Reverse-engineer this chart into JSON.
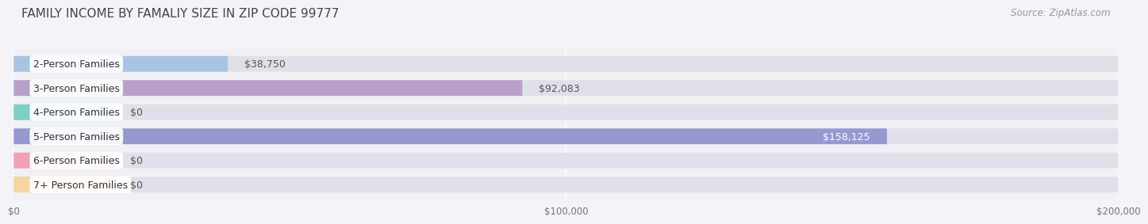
{
  "title": "FAMILY INCOME BY FAMALIY SIZE IN ZIP CODE 99777",
  "source": "Source: ZipAtlas.com",
  "categories": [
    "2-Person Families",
    "3-Person Families",
    "4-Person Families",
    "5-Person Families",
    "6-Person Families",
    "7+ Person Families"
  ],
  "values": [
    38750,
    92083,
    0,
    158125,
    0,
    0
  ],
  "bar_colors": [
    "#a8c4e2",
    "#b8a0c8",
    "#7dcfc8",
    "#9898d0",
    "#f4a0b4",
    "#f5d5a0"
  ],
  "bg_color": "#f0f0f5",
  "bar_bg_color": "#e0e0ea",
  "xlim": [
    0,
    200000
  ],
  "xticks": [
    0,
    100000,
    200000
  ],
  "xticklabels": [
    "$0",
    "$100,000",
    "$200,000"
  ],
  "value_labels": [
    "$38,750",
    "$92,083",
    "$0",
    "$158,125",
    "$0",
    "$0"
  ],
  "title_fontsize": 11,
  "source_fontsize": 8.5,
  "label_fontsize": 9,
  "value_fontsize": 9,
  "bar_height": 0.65,
  "figsize": [
    14.06,
    3.05
  ],
  "zero_bar_width": 18000
}
